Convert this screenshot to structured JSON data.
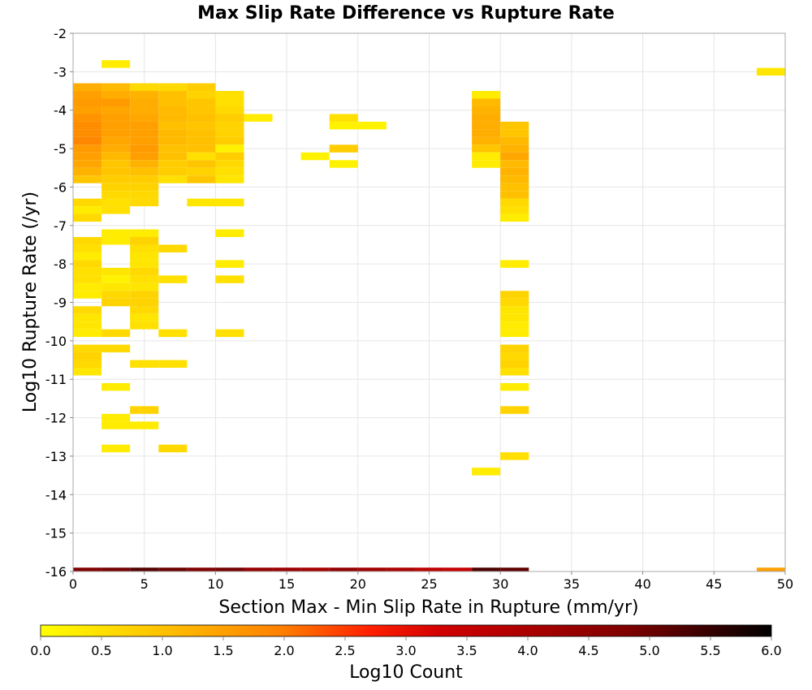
{
  "chart_data": {
    "type": "heatmap",
    "title": "Max Slip Rate Difference vs Rupture Rate",
    "xlabel": "Section Max - Min Slip Rate in Rupture (mm/yr)",
    "ylabel": "Log10 Rupture Rate (/yr)",
    "xlim": [
      0,
      50
    ],
    "ylim": [
      -16,
      -2
    ],
    "x_ticks": [
      0,
      5,
      10,
      15,
      20,
      25,
      30,
      35,
      40,
      45,
      50
    ],
    "y_ticks": [
      -2,
      -3,
      -4,
      -5,
      -6,
      -7,
      -8,
      -9,
      -10,
      -11,
      -12,
      -13,
      -14,
      -15,
      -16
    ],
    "grid": true,
    "bin_width_x": 2,
    "bin_height_y": 0.2,
    "colorbar": {
      "label": "Log10 Count",
      "range": [
        0.0,
        6.0
      ],
      "ticks": [
        "0.0",
        "0.5",
        "1.0",
        "1.5",
        "2.0",
        "2.5",
        "3.0",
        "3.5",
        "4.0",
        "4.5",
        "5.0",
        "5.5",
        "6.0"
      ],
      "colors": [
        "#ffff00",
        "#ffc000",
        "#ff8000",
        "#ff2000",
        "#d00000",
        "#800000",
        "#000000"
      ]
    },
    "cells": [
      {
        "x": 2,
        "y": -2.8,
        "value": 0.3
      },
      {
        "x": 0,
        "y": -3.4,
        "value": 1.3
      },
      {
        "x": 2,
        "y": -3.4,
        "value": 1.1
      },
      {
        "x": 4,
        "y": -3.4,
        "value": 0.6
      },
      {
        "x": 6,
        "y": -3.4,
        "value": 0.6
      },
      {
        "x": 8,
        "y": -3.4,
        "value": 0.8
      },
      {
        "x": 0,
        "y": -3.6,
        "value": 1.5
      },
      {
        "x": 2,
        "y": -3.6,
        "value": 1.3
      },
      {
        "x": 4,
        "y": -3.6,
        "value": 1.2
      },
      {
        "x": 6,
        "y": -3.6,
        "value": 1.0
      },
      {
        "x": 8,
        "y": -3.6,
        "value": 0.7
      },
      {
        "x": 10,
        "y": -3.6,
        "value": 0.5
      },
      {
        "x": 28,
        "y": -3.6,
        "value": 0.3
      },
      {
        "x": 0,
        "y": -3.8,
        "value": 1.6
      },
      {
        "x": 2,
        "y": -3.8,
        "value": 1.6
      },
      {
        "x": 4,
        "y": -3.8,
        "value": 1.3
      },
      {
        "x": 6,
        "y": -3.8,
        "value": 1.0
      },
      {
        "x": 8,
        "y": -3.8,
        "value": 0.9
      },
      {
        "x": 10,
        "y": -3.8,
        "value": 0.5
      },
      {
        "x": 28,
        "y": -3.8,
        "value": 1.1
      },
      {
        "x": 0,
        "y": -4.0,
        "value": 1.5
      },
      {
        "x": 2,
        "y": -4.0,
        "value": 1.4
      },
      {
        "x": 4,
        "y": -4.0,
        "value": 1.3
      },
      {
        "x": 6,
        "y": -4.0,
        "value": 1.1
      },
      {
        "x": 8,
        "y": -4.0,
        "value": 0.9
      },
      {
        "x": 10,
        "y": -4.0,
        "value": 0.6
      },
      {
        "x": 28,
        "y": -4.0,
        "value": 1.2
      },
      {
        "x": 0,
        "y": -4.2,
        "value": 1.7
      },
      {
        "x": 2,
        "y": -4.2,
        "value": 1.5
      },
      {
        "x": 4,
        "y": -4.2,
        "value": 1.4
      },
      {
        "x": 6,
        "y": -4.2,
        "value": 1.1
      },
      {
        "x": 8,
        "y": -4.2,
        "value": 1.0
      },
      {
        "x": 10,
        "y": -4.2,
        "value": 0.8
      },
      {
        "x": 12,
        "y": -4.2,
        "value": 0.3
      },
      {
        "x": 18,
        "y": -4.2,
        "value": 0.5
      },
      {
        "x": 28,
        "y": -4.2,
        "value": 1.3
      },
      {
        "x": 0,
        "y": -4.4,
        "value": 1.8
      },
      {
        "x": 2,
        "y": -4.4,
        "value": 1.5
      },
      {
        "x": 4,
        "y": -4.4,
        "value": 1.5
      },
      {
        "x": 6,
        "y": -4.4,
        "value": 1.0
      },
      {
        "x": 8,
        "y": -4.4,
        "value": 0.9
      },
      {
        "x": 10,
        "y": -4.4,
        "value": 0.7
      },
      {
        "x": 18,
        "y": -4.4,
        "value": 0.2
      },
      {
        "x": 20,
        "y": -4.4,
        "value": 0.2
      },
      {
        "x": 28,
        "y": -4.4,
        "value": 1.3
      },
      {
        "x": 30,
        "y": -4.4,
        "value": 0.9
      },
      {
        "x": 0,
        "y": -4.6,
        "value": 1.8
      },
      {
        "x": 2,
        "y": -4.6,
        "value": 1.5
      },
      {
        "x": 4,
        "y": -4.6,
        "value": 1.5
      },
      {
        "x": 6,
        "y": -4.6,
        "value": 1.1
      },
      {
        "x": 8,
        "y": -4.6,
        "value": 1.0
      },
      {
        "x": 10,
        "y": -4.6,
        "value": 0.7
      },
      {
        "x": 28,
        "y": -4.6,
        "value": 1.3
      },
      {
        "x": 30,
        "y": -4.6,
        "value": 0.9
      },
      {
        "x": 0,
        "y": -4.8,
        "value": 1.9
      },
      {
        "x": 2,
        "y": -4.8,
        "value": 1.4
      },
      {
        "x": 4,
        "y": -4.8,
        "value": 1.5
      },
      {
        "x": 6,
        "y": -4.8,
        "value": 1.1
      },
      {
        "x": 8,
        "y": -4.8,
        "value": 1.0
      },
      {
        "x": 10,
        "y": -4.8,
        "value": 0.8
      },
      {
        "x": 28,
        "y": -4.8,
        "value": 1.2
      },
      {
        "x": 30,
        "y": -4.8,
        "value": 1.1
      },
      {
        "x": 0,
        "y": -5.0,
        "value": 1.6
      },
      {
        "x": 2,
        "y": -5.0,
        "value": 1.3
      },
      {
        "x": 4,
        "y": -5.0,
        "value": 1.6
      },
      {
        "x": 6,
        "y": -5.0,
        "value": 1.0
      },
      {
        "x": 8,
        "y": -5.0,
        "value": 1.0
      },
      {
        "x": 10,
        "y": -5.0,
        "value": 0.2
      },
      {
        "x": 18,
        "y": -5.0,
        "value": 0.8
      },
      {
        "x": 28,
        "y": -5.0,
        "value": 0.9
      },
      {
        "x": 30,
        "y": -5.0,
        "value": 1.2
      },
      {
        "x": 0,
        "y": -5.2,
        "value": 1.5
      },
      {
        "x": 2,
        "y": -5.2,
        "value": 1.1
      },
      {
        "x": 4,
        "y": -5.2,
        "value": 1.5
      },
      {
        "x": 6,
        "y": -5.2,
        "value": 1.0
      },
      {
        "x": 8,
        "y": -5.2,
        "value": 0.5
      },
      {
        "x": 10,
        "y": -5.2,
        "value": 0.8
      },
      {
        "x": 16,
        "y": -5.2,
        "value": 0.2
      },
      {
        "x": 28,
        "y": -5.2,
        "value": 0.3
      },
      {
        "x": 30,
        "y": -5.2,
        "value": 1.4
      },
      {
        "x": 0,
        "y": -5.4,
        "value": 1.4
      },
      {
        "x": 2,
        "y": -5.4,
        "value": 0.9
      },
      {
        "x": 4,
        "y": -5.4,
        "value": 1.2
      },
      {
        "x": 6,
        "y": -5.4,
        "value": 0.8
      },
      {
        "x": 8,
        "y": -5.4,
        "value": 0.9
      },
      {
        "x": 10,
        "y": -5.4,
        "value": 0.6
      },
      {
        "x": 18,
        "y": -5.4,
        "value": 0.2
      },
      {
        "x": 28,
        "y": -5.4,
        "value": 0.3
      },
      {
        "x": 30,
        "y": -5.4,
        "value": 1.1
      },
      {
        "x": 0,
        "y": -5.6,
        "value": 1.2
      },
      {
        "x": 2,
        "y": -5.6,
        "value": 0.9
      },
      {
        "x": 4,
        "y": -5.6,
        "value": 1.0
      },
      {
        "x": 6,
        "y": -5.6,
        "value": 0.8
      },
      {
        "x": 8,
        "y": -5.6,
        "value": 0.7
      },
      {
        "x": 10,
        "y": -5.6,
        "value": 0.5
      },
      {
        "x": 30,
        "y": -5.6,
        "value": 1.2
      },
      {
        "x": 0,
        "y": -5.8,
        "value": 0.9
      },
      {
        "x": 2,
        "y": -5.8,
        "value": 0.8
      },
      {
        "x": 4,
        "y": -5.8,
        "value": 0.8
      },
      {
        "x": 6,
        "y": -5.8,
        "value": 0.5
      },
      {
        "x": 8,
        "y": -5.8,
        "value": 0.9
      },
      {
        "x": 10,
        "y": -5.8,
        "value": 0.4
      },
      {
        "x": 30,
        "y": -5.8,
        "value": 1.1
      },
      {
        "x": 2,
        "y": -6.0,
        "value": 0.7
      },
      {
        "x": 4,
        "y": -6.0,
        "value": 0.7
      },
      {
        "x": 30,
        "y": -6.0,
        "value": 1.0
      },
      {
        "x": 2,
        "y": -6.2,
        "value": 0.6
      },
      {
        "x": 4,
        "y": -6.2,
        "value": 0.6
      },
      {
        "x": 30,
        "y": -6.2,
        "value": 1.0
      },
      {
        "x": 0,
        "y": -6.4,
        "value": 0.6
      },
      {
        "x": 2,
        "y": -6.4,
        "value": 0.5
      },
      {
        "x": 4,
        "y": -6.4,
        "value": 0.6
      },
      {
        "x": 8,
        "y": -6.4,
        "value": 0.4
      },
      {
        "x": 10,
        "y": -6.4,
        "value": 0.4
      },
      {
        "x": 30,
        "y": -6.4,
        "value": 0.6
      },
      {
        "x": 0,
        "y": -6.6,
        "value": 0.3
      },
      {
        "x": 2,
        "y": -6.6,
        "value": 0.5
      },
      {
        "x": 30,
        "y": -6.6,
        "value": 0.5
      },
      {
        "x": 0,
        "y": -6.8,
        "value": 0.6
      },
      {
        "x": 30,
        "y": -6.8,
        "value": 0.3
      },
      {
        "x": 2,
        "y": -7.2,
        "value": 0.3
      },
      {
        "x": 4,
        "y": -7.2,
        "value": 0.3
      },
      {
        "x": 10,
        "y": -7.2,
        "value": 0.3
      },
      {
        "x": 0,
        "y": -7.4,
        "value": 0.6
      },
      {
        "x": 2,
        "y": -7.4,
        "value": 0.3
      },
      {
        "x": 4,
        "y": -7.4,
        "value": 0.7
      },
      {
        "x": 0,
        "y": -7.6,
        "value": 0.5
      },
      {
        "x": 4,
        "y": -7.6,
        "value": 0.5
      },
      {
        "x": 6,
        "y": -7.6,
        "value": 0.6
      },
      {
        "x": 0,
        "y": -7.8,
        "value": 0.3
      },
      {
        "x": 4,
        "y": -7.8,
        "value": 0.4
      },
      {
        "x": 0,
        "y": -8.0,
        "value": 0.6
      },
      {
        "x": 4,
        "y": -8.0,
        "value": 0.4
      },
      {
        "x": 10,
        "y": -8.0,
        "value": 0.3
      },
      {
        "x": 30,
        "y": -8.0,
        "value": 0.3
      },
      {
        "x": 0,
        "y": -8.2,
        "value": 0.5
      },
      {
        "x": 2,
        "y": -8.2,
        "value": 0.4
      },
      {
        "x": 4,
        "y": -8.2,
        "value": 0.6
      },
      {
        "x": 0,
        "y": -8.4,
        "value": 0.5
      },
      {
        "x": 2,
        "y": -8.4,
        "value": 0.2
      },
      {
        "x": 4,
        "y": -8.4,
        "value": 0.5
      },
      {
        "x": 6,
        "y": -8.4,
        "value": 0.5
      },
      {
        "x": 10,
        "y": -8.4,
        "value": 0.5
      },
      {
        "x": 0,
        "y": -8.6,
        "value": 0.3
      },
      {
        "x": 2,
        "y": -8.6,
        "value": 0.4
      },
      {
        "x": 4,
        "y": -8.6,
        "value": 0.4
      },
      {
        "x": 0,
        "y": -8.8,
        "value": 0.3
      },
      {
        "x": 2,
        "y": -8.8,
        "value": 0.6
      },
      {
        "x": 4,
        "y": -8.8,
        "value": 0.7
      },
      {
        "x": 30,
        "y": -8.8,
        "value": 0.7
      },
      {
        "x": 2,
        "y": -9.0,
        "value": 0.7
      },
      {
        "x": 4,
        "y": -9.0,
        "value": 0.7
      },
      {
        "x": 30,
        "y": -9.0,
        "value": 0.6
      },
      {
        "x": 0,
        "y": -9.2,
        "value": 0.6
      },
      {
        "x": 4,
        "y": -9.2,
        "value": 0.6
      },
      {
        "x": 30,
        "y": -9.2,
        "value": 0.4
      },
      {
        "x": 0,
        "y": -9.4,
        "value": 0.4
      },
      {
        "x": 4,
        "y": -9.4,
        "value": 0.4
      },
      {
        "x": 30,
        "y": -9.4,
        "value": 0.4
      },
      {
        "x": 0,
        "y": -9.6,
        "value": 0.4
      },
      {
        "x": 4,
        "y": -9.6,
        "value": 0.5
      },
      {
        "x": 30,
        "y": -9.6,
        "value": 0.3
      },
      {
        "x": 0,
        "y": -9.8,
        "value": 0.3
      },
      {
        "x": 2,
        "y": -9.8,
        "value": 0.6
      },
      {
        "x": 6,
        "y": -9.8,
        "value": 0.5
      },
      {
        "x": 10,
        "y": -9.8,
        "value": 0.5
      },
      {
        "x": 30,
        "y": -9.8,
        "value": 0.3
      },
      {
        "x": 0,
        "y": -10.2,
        "value": 0.6
      },
      {
        "x": 2,
        "y": -10.2,
        "value": 0.6
      },
      {
        "x": 30,
        "y": -10.2,
        "value": 0.7
      },
      {
        "x": 0,
        "y": -10.4,
        "value": 0.7
      },
      {
        "x": 30,
        "y": -10.4,
        "value": 0.6
      },
      {
        "x": 0,
        "y": -10.6,
        "value": 0.6
      },
      {
        "x": 4,
        "y": -10.6,
        "value": 0.5
      },
      {
        "x": 6,
        "y": -10.6,
        "value": 0.5
      },
      {
        "x": 30,
        "y": -10.6,
        "value": 0.7
      },
      {
        "x": 0,
        "y": -10.8,
        "value": 0.4
      },
      {
        "x": 30,
        "y": -10.8,
        "value": 0.5
      },
      {
        "x": 2,
        "y": -11.2,
        "value": 0.3
      },
      {
        "x": 30,
        "y": -11.2,
        "value": 0.3
      },
      {
        "x": 4,
        "y": -11.8,
        "value": 0.7
      },
      {
        "x": 30,
        "y": -11.8,
        "value": 0.7
      },
      {
        "x": 2,
        "y": -12.0,
        "value": 0.3
      },
      {
        "x": 2,
        "y": -12.2,
        "value": 0.3
      },
      {
        "x": 4,
        "y": -12.2,
        "value": 0.3
      },
      {
        "x": 2,
        "y": -12.8,
        "value": 0.3
      },
      {
        "x": 6,
        "y": -12.8,
        "value": 0.6
      },
      {
        "x": 30,
        "y": -13.0,
        "value": 0.5
      },
      {
        "x": 28,
        "y": -13.4,
        "value": 0.3
      },
      {
        "x": 48,
        "y": -3.0,
        "value": 0.4
      },
      {
        "x": 0,
        "y": -16.0,
        "value": 4.8
      },
      {
        "x": 2,
        "y": -16.0,
        "value": 4.9
      },
      {
        "x": 4,
        "y": -16.0,
        "value": 5.2
      },
      {
        "x": 6,
        "y": -16.0,
        "value": 5.0
      },
      {
        "x": 8,
        "y": -16.0,
        "value": 4.8
      },
      {
        "x": 10,
        "y": -16.0,
        "value": 4.9
      },
      {
        "x": 12,
        "y": -16.0,
        "value": 4.4
      },
      {
        "x": 14,
        "y": -16.0,
        "value": 4.3
      },
      {
        "x": 16,
        "y": -16.0,
        "value": 4.1
      },
      {
        "x": 18,
        "y": -16.0,
        "value": 4.5
      },
      {
        "x": 20,
        "y": -16.0,
        "value": 4.2
      },
      {
        "x": 22,
        "y": -16.0,
        "value": 4.0
      },
      {
        "x": 24,
        "y": -16.0,
        "value": 3.7
      },
      {
        "x": 26,
        "y": -16.0,
        "value": 3.5
      },
      {
        "x": 28,
        "y": -16.0,
        "value": 5.3
      },
      {
        "x": 30,
        "y": -16.0,
        "value": 5.1
      },
      {
        "x": 48,
        "y": -16.0,
        "value": 1.5
      }
    ]
  }
}
